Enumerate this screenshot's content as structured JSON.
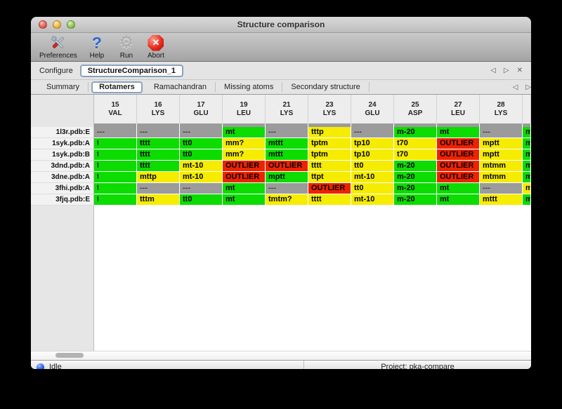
{
  "window": {
    "title": "Structure comparison"
  },
  "traffic_lights": [
    {
      "name": "close",
      "kind": "red"
    },
    {
      "name": "minimize",
      "kind": "yellow"
    },
    {
      "name": "zoom",
      "kind": "green"
    }
  ],
  "toolbar": {
    "items": [
      {
        "label": "Preferences",
        "icon": "tools-icon"
      },
      {
        "label": "Help",
        "icon": "question-mark-icon"
      },
      {
        "label": "Run",
        "icon": "gear-icon"
      },
      {
        "label": "Abort",
        "icon": "stop-icon"
      }
    ]
  },
  "configure": {
    "label": "Configure",
    "value": "StructureComparison_1",
    "nav_prev": "◁",
    "nav_next": "▷",
    "nav_close": "✕"
  },
  "tabs": {
    "items": [
      "Summary",
      "Rotamers",
      "Ramachandran",
      "Missing atoms",
      "Secondary structure"
    ],
    "selected": "Rotamers",
    "nav_prev": "◁",
    "nav_next": "▷"
  },
  "table": {
    "status_colors": {
      "favored": "#0cdc00",
      "allowed": "#f5ec00",
      "outlier": "#ee2200",
      "missing": "#9b9b9b"
    },
    "columns": [
      {
        "number": "15",
        "residue": "VAL"
      },
      {
        "number": "16",
        "residue": "LYS"
      },
      {
        "number": "17",
        "residue": "GLU"
      },
      {
        "number": "19",
        "residue": "LEU"
      },
      {
        "number": "21",
        "residue": "LYS"
      },
      {
        "number": "23",
        "residue": "LYS"
      },
      {
        "number": "24",
        "residue": "GLU"
      },
      {
        "number": "25",
        "residue": "ASP"
      },
      {
        "number": "27",
        "residue": "LEU"
      },
      {
        "number": "28",
        "residue": "LYS"
      },
      {
        "number": "",
        "residue": "",
        "partial": true
      }
    ],
    "rows": [
      {
        "label": "1l3r.pdb:E",
        "cells": [
          {
            "t": "---",
            "s": "missing"
          },
          {
            "t": "---",
            "s": "missing"
          },
          {
            "t": "---",
            "s": "missing"
          },
          {
            "t": "mt",
            "s": "favored"
          },
          {
            "t": "---",
            "s": "missing"
          },
          {
            "t": "tttp",
            "s": "allowed"
          },
          {
            "t": "---",
            "s": "missing"
          },
          {
            "t": "m-20",
            "s": "favored"
          },
          {
            "t": "mt",
            "s": "favored"
          },
          {
            "t": "---",
            "s": "missing"
          },
          {
            "t": "m",
            "s": "favored"
          }
        ]
      },
      {
        "label": "1syk.pdb:A",
        "cells": [
          {
            "t": "t",
            "s": "favored",
            "clipped": true
          },
          {
            "t": "tttt",
            "s": "favored"
          },
          {
            "t": "tt0",
            "s": "favored"
          },
          {
            "t": "mm?",
            "s": "allowed"
          },
          {
            "t": "mttt",
            "s": "favored"
          },
          {
            "t": "tptm",
            "s": "allowed"
          },
          {
            "t": "tp10",
            "s": "allowed"
          },
          {
            "t": "t70",
            "s": "allowed"
          },
          {
            "t": "OUTLIER",
            "s": "outlier"
          },
          {
            "t": "mptt",
            "s": "allowed"
          },
          {
            "t": "m",
            "s": "favored"
          }
        ]
      },
      {
        "label": "1syk.pdb:B",
        "cells": [
          {
            "t": "t",
            "s": "favored",
            "clipped": true
          },
          {
            "t": "tttt",
            "s": "favored"
          },
          {
            "t": "tt0",
            "s": "favored"
          },
          {
            "t": "mm?",
            "s": "allowed"
          },
          {
            "t": "mttt",
            "s": "favored"
          },
          {
            "t": "tptm",
            "s": "allowed"
          },
          {
            "t": "tp10",
            "s": "allowed"
          },
          {
            "t": "t70",
            "s": "allowed"
          },
          {
            "t": "OUTLIER",
            "s": "outlier"
          },
          {
            "t": "mptt",
            "s": "allowed"
          },
          {
            "t": "m",
            "s": "favored"
          }
        ]
      },
      {
        "label": "3dnd.pdb:A",
        "cells": [
          {
            "t": "t",
            "s": "favored",
            "clipped": true
          },
          {
            "t": "tttt",
            "s": "favored"
          },
          {
            "t": "mt-10",
            "s": "allowed"
          },
          {
            "t": "OUTLIER",
            "s": "outlier"
          },
          {
            "t": "OUTLIER",
            "s": "outlier"
          },
          {
            "t": "tttt",
            "s": "allowed"
          },
          {
            "t": "tt0",
            "s": "allowed"
          },
          {
            "t": "m-20",
            "s": "favored"
          },
          {
            "t": "OUTLIER",
            "s": "outlier"
          },
          {
            "t": "mtmm",
            "s": "allowed"
          },
          {
            "t": "m",
            "s": "favored"
          }
        ]
      },
      {
        "label": "3dne.pdb:A",
        "cells": [
          {
            "t": "t",
            "s": "favored",
            "clipped": true
          },
          {
            "t": "mttp",
            "s": "allowed"
          },
          {
            "t": "mt-10",
            "s": "allowed"
          },
          {
            "t": "OUTLIER",
            "s": "outlier"
          },
          {
            "t": "mptt",
            "s": "favored"
          },
          {
            "t": "ttpt",
            "s": "allowed"
          },
          {
            "t": "mt-10",
            "s": "allowed"
          },
          {
            "t": "m-20",
            "s": "favored"
          },
          {
            "t": "OUTLIER",
            "s": "outlier"
          },
          {
            "t": "mtmm",
            "s": "allowed"
          },
          {
            "t": "m",
            "s": "favored"
          }
        ]
      },
      {
        "label": "3fhi.pdb:A",
        "cells": [
          {
            "t": "t",
            "s": "favored",
            "clipped": true
          },
          {
            "t": "---",
            "s": "missing"
          },
          {
            "t": "---",
            "s": "missing"
          },
          {
            "t": "mt",
            "s": "favored"
          },
          {
            "t": "---",
            "s": "missing"
          },
          {
            "t": "OUTLIER",
            "s": "outlier"
          },
          {
            "t": "tt0",
            "s": "allowed"
          },
          {
            "t": "m-20",
            "s": "favored"
          },
          {
            "t": "mt",
            "s": "favored"
          },
          {
            "t": "---",
            "s": "missing"
          },
          {
            "t": "m",
            "s": "allowed"
          }
        ]
      },
      {
        "label": "3fjq.pdb:E",
        "cells": [
          {
            "t": "t",
            "s": "favored",
            "clipped": true
          },
          {
            "t": "tttm",
            "s": "allowed"
          },
          {
            "t": "tt0",
            "s": "favored"
          },
          {
            "t": "mt",
            "s": "favored"
          },
          {
            "t": "tmtm?",
            "s": "allowed"
          },
          {
            "t": "tttt",
            "s": "allowed"
          },
          {
            "t": "mt-10",
            "s": "allowed"
          },
          {
            "t": "m-20",
            "s": "favored"
          },
          {
            "t": "mt",
            "s": "favored"
          },
          {
            "t": "mttt",
            "s": "allowed"
          },
          {
            "t": "m",
            "s": "favored"
          }
        ]
      }
    ]
  },
  "statusbar": {
    "status": "Idle",
    "project": "Project: pka-compare"
  }
}
